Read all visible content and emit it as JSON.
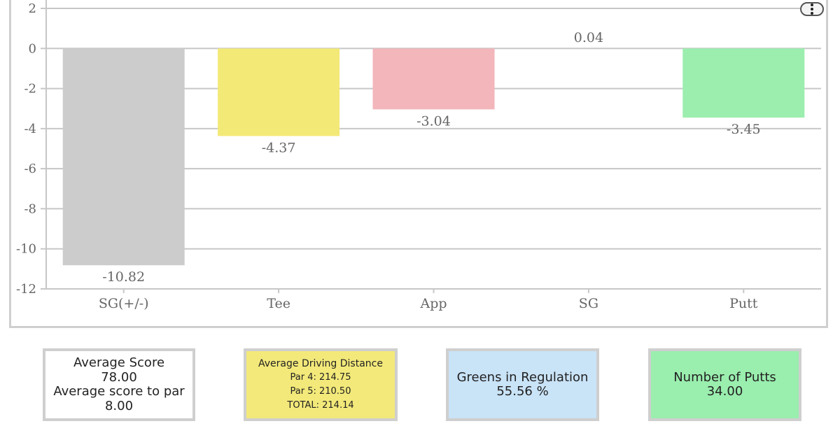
{
  "chart_data": {
    "type": "bar",
    "categories": [
      "SG(+/-)",
      "Tee",
      "App",
      "SG",
      "Putt"
    ],
    "values": [
      -10.82,
      -4.37,
      -3.04,
      0.04,
      -3.45
    ],
    "value_labels": [
      "-10.82",
      "-4.37",
      "-3.04",
      "0.04",
      "-3.45"
    ],
    "colors": [
      "#cccccc",
      "#f3e977",
      "#f2b6bb",
      "#ffffff",
      "#9beeae"
    ],
    "y_ticks": [
      "2",
      "0",
      "-2",
      "-4",
      "-6",
      "-8",
      "-10",
      "-12"
    ],
    "ylim": [
      -12,
      2
    ],
    "grid": true
  },
  "menu": {
    "icon": "vertical-dots-icon"
  },
  "stats": {
    "score": {
      "title": "Average Score",
      "value": "78.00",
      "subtitle": "Average score to par",
      "subvalue": "8.00"
    },
    "driving": {
      "title": "Average Driving Distance",
      "par4": "Par 4: 214.75",
      "par5": "Par 5: 210.50",
      "total": "TOTAL: 214.14"
    },
    "gir": {
      "title": "Greens in Regulation",
      "value": "55.56 %"
    },
    "putts": {
      "title": "Number of Putts",
      "value": "34.00"
    }
  }
}
